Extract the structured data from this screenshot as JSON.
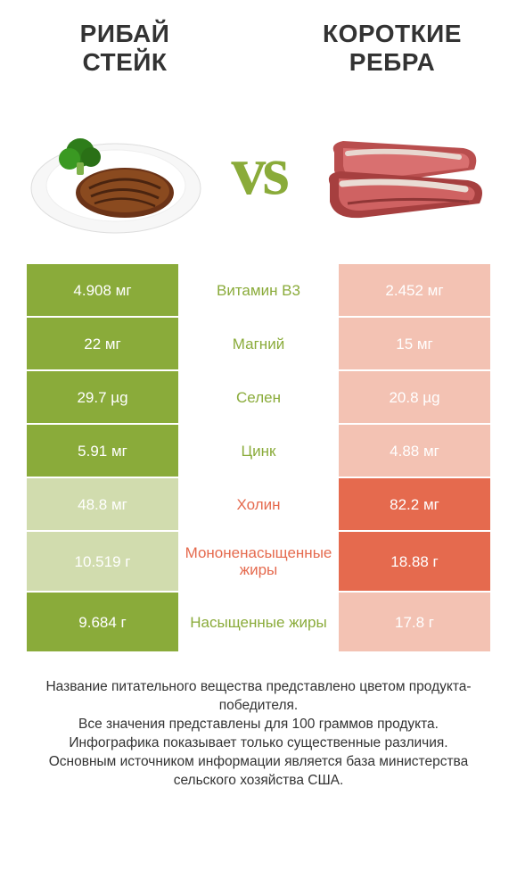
{
  "colors": {
    "green": "#8aab3a",
    "green_light": "#d1dcae",
    "orange": "#e56a4e",
    "orange_light": "#f3c2b3",
    "text": "#333333",
    "bg": "#ffffff"
  },
  "header": {
    "left_title": "Рибай стейк",
    "right_title": "Короткие ребра",
    "vs": "vs"
  },
  "rows": [
    {
      "left": "4.908 мг",
      "mid": "Витамин B3",
      "right": "2.452 мг",
      "winner": "left"
    },
    {
      "left": "22 мг",
      "mid": "Магний",
      "right": "15 мг",
      "winner": "left"
    },
    {
      "left": "29.7 µg",
      "mid": "Селен",
      "right": "20.8 µg",
      "winner": "left"
    },
    {
      "left": "5.91 мг",
      "mid": "Цинк",
      "right": "4.88 мг",
      "winner": "left"
    },
    {
      "left": "48.8 мг",
      "mid": "Холин",
      "right": "82.2 мг",
      "winner": "right"
    },
    {
      "left": "10.519 г",
      "mid": "Мононенасыщенные жиры",
      "right": "18.88 г",
      "winner": "right",
      "tall": true
    },
    {
      "left": "9.684 г",
      "mid": "Насыщенные жиры",
      "right": "17.8 г",
      "winner": "left",
      "tall": true
    }
  ],
  "footnote": {
    "l1": "Название питательного вещества представлено цветом продукта-победителя.",
    "l2": "Все значения представлены для 100 граммов продукта.",
    "l3": "Инфографика показывает только существенные различия.",
    "l4": "Основным источником информации является база министерства сельского хозяйства США."
  }
}
